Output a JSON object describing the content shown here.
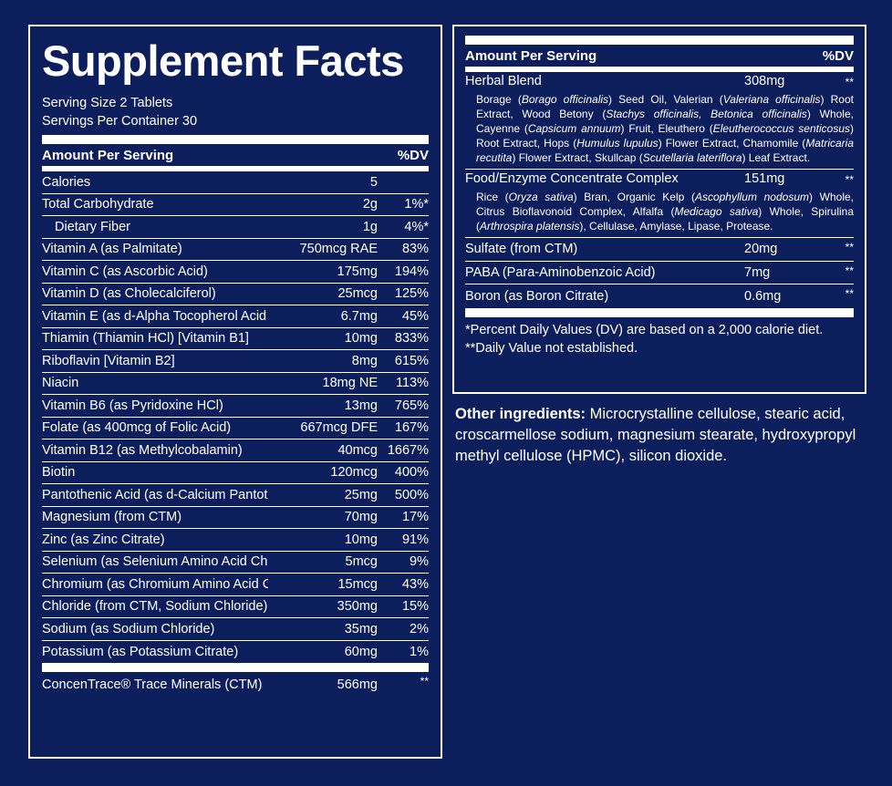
{
  "title": "Supplement Facts",
  "serving_size": "Serving Size 2 Tablets",
  "servings_per_container": "Servings Per Container 30",
  "header": {
    "amount_label": "Amount Per Serving",
    "dv_label": "%DV"
  },
  "nutrients": [
    {
      "name": "Calories",
      "amount": "5",
      "dv": ""
    },
    {
      "name": "Total Carbohydrate",
      "amount": "2g",
      "dv": "1%*"
    },
    {
      "name": "Dietary Fiber",
      "amount": "1g",
      "dv": "4%*"
    },
    {
      "name": "Vitamin A (as Palmitate)",
      "amount": "750mcg RAE",
      "dv": "83%"
    },
    {
      "name": "Vitamin C (as Ascorbic Acid)",
      "amount": "175mg",
      "dv": "194%"
    },
    {
      "name": "Vitamin D (as Cholecalciferol)",
      "amount": "25mcg",
      "dv": "125%"
    },
    {
      "name": "Vitamin E (as d-Alpha Tocopherol Acid Succinate)",
      "amount": "6.7mg",
      "dv": "45%"
    },
    {
      "name": "Thiamin (Thiamin HCl) [Vitamin B1]",
      "amount": "10mg",
      "dv": "833%"
    },
    {
      "name": "Riboflavin [Vitamin B2]",
      "amount": "8mg",
      "dv": "615%"
    },
    {
      "name": "Niacin",
      "amount": "18mg NE",
      "dv": "113%"
    },
    {
      "name": "Vitamin B6 (as Pyridoxine HCl)",
      "amount": "13mg",
      "dv": "765%"
    },
    {
      "name": "Folate (as 400mcg of Folic Acid)",
      "amount": "667mcg DFE",
      "dv": "167%"
    },
    {
      "name": "Vitamin B12 (as Methylcobalamin)",
      "amount": "40mcg",
      "dv": "1667%"
    },
    {
      "name": "Biotin",
      "amount": "120mcg",
      "dv": "400%"
    },
    {
      "name": "Pantothenic Acid (as d-Calcium Pantothenate)",
      "amount": "25mg",
      "dv": "500%"
    },
    {
      "name": "Magnesium (from CTM)",
      "amount": "70mg",
      "dv": "17%"
    },
    {
      "name": "Zinc (as Zinc Citrate)",
      "amount": "10mg",
      "dv": "91%"
    },
    {
      "name": "Selenium (as Selenium Amino Acid Chelate)",
      "amount": "5mcg",
      "dv": "9%"
    },
    {
      "name": "Chromium (as Chromium Amino Acid Chelate)",
      "amount": "15mcg",
      "dv": "43%"
    },
    {
      "name": "Chloride (from CTM, Sodium Chloride)",
      "amount": "350mg",
      "dv": "15%"
    },
    {
      "name": "Sodium (as Sodium Chloride)",
      "amount": "35mg",
      "dv": "2%"
    },
    {
      "name": "Potassium (as Potassium Citrate)",
      "amount": "60mg",
      "dv": "1%"
    }
  ],
  "concentrace": {
    "name": "ConcenTrace® Trace Minerals (CTM)",
    "amount": "566mg",
    "dv": "**"
  },
  "right_header": {
    "amount_label": "Amount Per Serving",
    "dv_label": "%DV"
  },
  "herbal_blend": {
    "name": "Herbal Blend",
    "amount": "308mg",
    "dv": "**",
    "parts": [
      {
        "t": "Borage ("
      },
      {
        "t": "Borago officinalis",
        "i": true
      },
      {
        "t": ") Seed Oil, Valerian ("
      },
      {
        "t": "Valeriana officinalis",
        "i": true
      },
      {
        "t": ") Root Extract, Wood Betony ("
      },
      {
        "t": "Stachys officinalis, Betonica officinalis",
        "i": true
      },
      {
        "t": ") Whole, Cayenne ("
      },
      {
        "t": "Capsicum annuum",
        "i": true
      },
      {
        "t": ") Fruit, Eleuthero ("
      },
      {
        "t": "Eleutherococcus senticosus",
        "i": true
      },
      {
        "t": ") Root Extract, Hops ("
      },
      {
        "t": "Humulus lupulus",
        "i": true
      },
      {
        "t": ") Flower Extract, Chamomile ("
      },
      {
        "t": "Matricaria recutita",
        "i": true
      },
      {
        "t": ") Flower Extract, Skullcap ("
      },
      {
        "t": "Scutellaria lateriflora",
        "i": true
      },
      {
        "t": ") Leaf Extract."
      }
    ]
  },
  "enzyme_complex": {
    "name": "Food/Enzyme Concentrate Complex",
    "amount": "151mg",
    "dv": "**",
    "parts": [
      {
        "t": "Rice ("
      },
      {
        "t": "Oryza sativa",
        "i": true
      },
      {
        "t": ") Bran, Organic Kelp ("
      },
      {
        "t": "Ascophyllum nodosum",
        "i": true
      },
      {
        "t": ") Whole, Citrus Bioflavonoid Complex, Alfalfa ("
      },
      {
        "t": "Medicago sativa",
        "i": true
      },
      {
        "t": ") Whole, Spirulina ("
      },
      {
        "t": "Arthrospira platensis",
        "i": true
      },
      {
        "t": "), Cellulase, Amylase, Lipase, Protease."
      }
    ]
  },
  "right_rows": [
    {
      "name": "Sulfate (from CTM)",
      "amount": "20mg",
      "dv": "**"
    },
    {
      "name": "PABA (Para-Aminobenzoic Acid)",
      "amount": "7mg",
      "dv": "**"
    },
    {
      "name": "Boron (as Boron Citrate)",
      "amount": "0.6mg",
      "dv": "**"
    }
  ],
  "footnotes": [
    "*Percent Daily Values (DV) are based on a 2,000 calorie diet.",
    "**Daily Value not established."
  ],
  "other_ingredients": {
    "label": "Other ingredients:",
    "text": " Microcrystalline cellulose, stearic acid, croscarmellose sodium, magnesium stearate, hydroxypropyl methyl cellulose (HPMC), silicon dioxide."
  }
}
